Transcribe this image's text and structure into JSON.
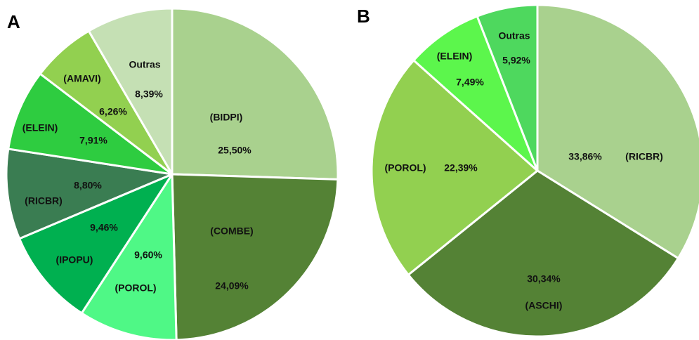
{
  "panels": [
    {
      "letter": "A"
    },
    {
      "letter": "B"
    }
  ],
  "chart_data": [
    {
      "type": "pie",
      "panel": "A",
      "slices": [
        {
          "label": "(BIDPI)",
          "value_label": "25,50%",
          "value": 25.5,
          "color": "#a9d18e"
        },
        {
          "label": "(COMBE)",
          "value_label": "24,09%",
          "value": 24.09,
          "color": "#548235"
        },
        {
          "label": "(POROL)",
          "value_label": "9,60%",
          "value": 9.6,
          "color": "#4ff886"
        },
        {
          "label": "(IPOPU)",
          "value_label": "9,46%",
          "value": 9.46,
          "color": "#00b050"
        },
        {
          "label": "(RICBR)",
          "value_label": "8,80%",
          "value": 8.8,
          "color": "#3a7d52"
        },
        {
          "label": "(ELEIN)",
          "value_label": "7,91%",
          "value": 7.91,
          "color": "#2ecc40"
        },
        {
          "label": "(AMAVI)",
          "value_label": "6,26%",
          "value": 6.26,
          "color": "#92d050"
        },
        {
          "label": "Outras",
          "value_label": "8,39%",
          "value": 8.39,
          "color": "#c5e0b4"
        }
      ]
    },
    {
      "type": "pie",
      "panel": "B",
      "slices": [
        {
          "label": "(RICBR)",
          "value_label": "33,86%",
          "value": 33.86,
          "color": "#a9d18e"
        },
        {
          "label": "(ASCHI)",
          "value_label": "30,34%",
          "value": 30.34,
          "color": "#548235"
        },
        {
          "label": "(POROL)",
          "value_label": "22,39%",
          "value": 22.39,
          "color": "#92d050"
        },
        {
          "label": "(ELEIN)",
          "value_label": "7,49%",
          "value": 7.49,
          "color": "#5cf64c"
        },
        {
          "label": "Outras",
          "value_label": "5,92%",
          "value": 5.92,
          "color": "#4ed85e"
        }
      ]
    }
  ]
}
